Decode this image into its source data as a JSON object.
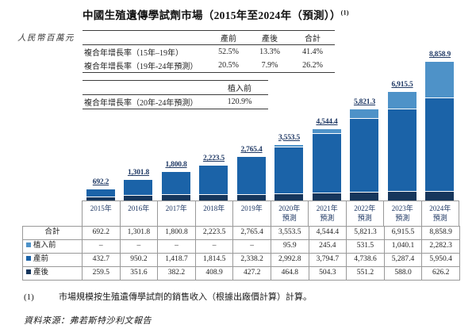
{
  "title": {
    "text": "中國生殖遺傳學試劑市場（2015年至2024年（預測））",
    "superscript": "(1)"
  },
  "unit_label": "人民幣百萬元",
  "cagr_tables": [
    {
      "col_headers": [
        "產前",
        "產後",
        "合計"
      ],
      "rows": [
        {
          "label": "複合年增長率（15年–19年）",
          "values": [
            "52.5%",
            "13.3%",
            "41.4%"
          ]
        },
        {
          "label": "複合年增長率（19年-24年預測）",
          "values": [
            "20.5%",
            "7.9%",
            "26.2%"
          ]
        }
      ]
    },
    {
      "col_headers": [
        "植入前"
      ],
      "rows": [
        {
          "label": "複合年增長率（20年-24年預測）",
          "values": [
            "120.9%"
          ]
        }
      ]
    }
  ],
  "chart_data": {
    "type": "bar",
    "stacked": true,
    "title": "中國生殖遺傳學試劑市場（2015年至2024年（預測））",
    "ylabel": "人民幣百萬元",
    "ylim": [
      0,
      8858.9
    ],
    "grid": false,
    "legend_position": "left-of-data-table",
    "categories": [
      "2015年",
      "2016年",
      "2017年",
      "2018年",
      "2019年",
      "2020年預測",
      "2021年預測",
      "2022年預測",
      "2023年預測",
      "2024年預測"
    ],
    "axis_labels": [
      [
        "2015年"
      ],
      [
        "2016年"
      ],
      [
        "2017年"
      ],
      [
        "2018年"
      ],
      [
        "2019年"
      ],
      [
        "2020年",
        "預測"
      ],
      [
        "2021年",
        "預測"
      ],
      [
        "2022年",
        "預測"
      ],
      [
        "2023年",
        "預測"
      ],
      [
        "2024年",
        "預測"
      ]
    ],
    "totals": [
      692.2,
      1301.8,
      1800.8,
      2223.5,
      2765.4,
      3553.5,
      4544.4,
      5821.3,
      6915.5,
      8858.9
    ],
    "total_labels": [
      "692.2",
      "1,301.8",
      "1,800.8",
      "2,223.5",
      "2,765.4",
      "3,553.5",
      "4,544.4",
      "5,821.3",
      "6,915.5",
      "8,858.9"
    ],
    "series": [
      {
        "name": "植入前",
        "color": "#4e92c8",
        "values": [
          null,
          null,
          null,
          null,
          null,
          95.9,
          245.4,
          531.5,
          1040.1,
          2282.3
        ]
      },
      {
        "name": "產前",
        "color": "#1b63a8",
        "values": [
          432.7,
          950.2,
          1418.7,
          1814.5,
          2338.2,
          2992.8,
          3794.7,
          4738.6,
          5287.4,
          5950.4
        ]
      },
      {
        "name": "產後",
        "color": "#16365c",
        "values": [
          259.5,
          351.6,
          382.2,
          408.9,
          427.2,
          464.8,
          504.3,
          551.2,
          588.0,
          626.2
        ]
      }
    ]
  },
  "data_table": {
    "rows": [
      {
        "label": "合計",
        "swatch": null,
        "values": [
          "692.2",
          "1,301.8",
          "1,800.8",
          "2,223.5",
          "2,765.4",
          "3,553.5",
          "4,544.4",
          "5,821.3",
          "6,915.5",
          "8,858.9"
        ]
      },
      {
        "label": "植入前",
        "swatch": "#4e92c8",
        "values": [
          "–",
          "–",
          "–",
          "–",
          "–",
          "95.9",
          "245.4",
          "531.5",
          "1,040.1",
          "2,282.3"
        ]
      },
      {
        "label": "產前",
        "swatch": "#1b63a8",
        "values": [
          "432.7",
          "950.2",
          "1,418.7",
          "1,814.5",
          "2,338.2",
          "2,992.8",
          "3,794.7",
          "4,738.6",
          "5,287.4",
          "5,950.4"
        ]
      },
      {
        "label": "產後",
        "swatch": "#16365c",
        "values": [
          "259.5",
          "351.6",
          "382.2",
          "408.9",
          "427.2",
          "464.8",
          "504.3",
          "551.2",
          "588.0",
          "626.2"
        ]
      }
    ]
  },
  "footnote": {
    "marker": "(1)",
    "text": "市場規模按生殖遺傳學試劑的銷售收入（根據出廠價計算）計算。"
  },
  "source": "資料來源：弗若斯特沙利文報告"
}
